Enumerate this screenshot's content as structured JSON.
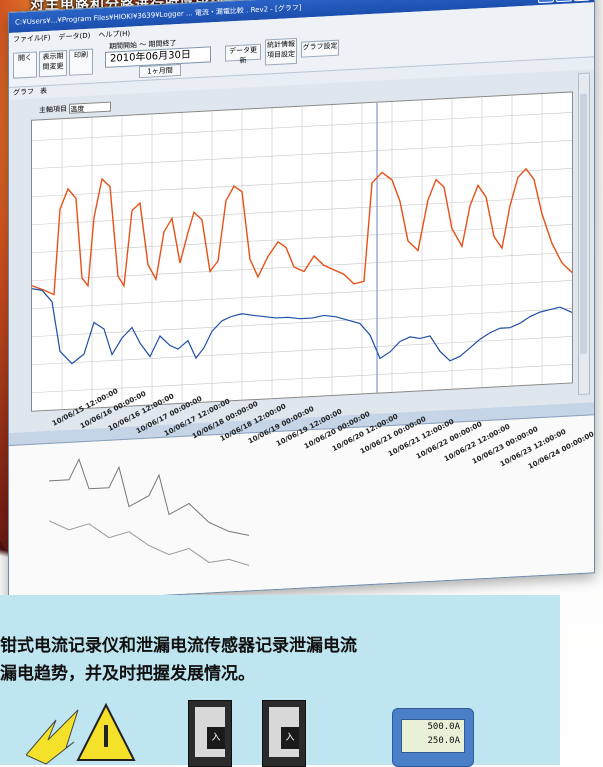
{
  "caption_top": "对主电路和分路进行时序比较，可方便诊断和确认漏电状态。",
  "window": {
    "title": "C:¥Users¥...¥Program Files¥HIOKI¥3639¥Logger ... 電流・漏電比較 . Rev2 - [グラフ]",
    "menu": [
      "ファイル(F)",
      "データ(D)",
      "ヘルプ(H)"
    ],
    "toolbar": {
      "buttons": [
        "開く",
        "表示期間変更",
        "印刷"
      ],
      "period_label": "期間開始 ～ 期間終了",
      "date": "2010年06月30日",
      "date_unit": "1ヶ月間",
      "data_update": "データ更新",
      "stat_setting": "統計情報\n項目設定",
      "graph_setting": "グラフ設定"
    },
    "tabs": [
      "グラフ",
      "表"
    ],
    "selector_label": "主軸項目",
    "selector_value": "温度",
    "x_labels": [
      "10/06/15\n12:00:00",
      "10/06/16\n00:00:00",
      "10/06/16\n12:00:00",
      "10/06/17\n00:00:00",
      "10/06/17\n12:00:00",
      "10/06/18\n00:00:00",
      "10/06/18\n12:00:00",
      "10/06/19\n00:00:00",
      "10/06/19\n12:00:00",
      "10/06/20\n00:00:00",
      "10/06/20\n12:00:00",
      "10/06/21\n00:00:00",
      "10/06/21\n12:00:00",
      "10/06/22\n00:00:00",
      "10/06/22\n12:00:00",
      "10/06/23\n00:00:00",
      "10/06/23\n12:00:00",
      "10/06/24\n00:00:00"
    ],
    "series_colors": {
      "primary": "#e8501a",
      "secondary": "#1f4fa8"
    }
  },
  "panel": {
    "line1": "钳式电流记录仪和泄漏电流传感器记录泄漏电流",
    "line2": "漏电趋势，并及时把握发展情况。"
  },
  "logger": {
    "value1": "500.0",
    "value2": "250.0",
    "unit": "A"
  },
  "breaker_label": "入"
}
